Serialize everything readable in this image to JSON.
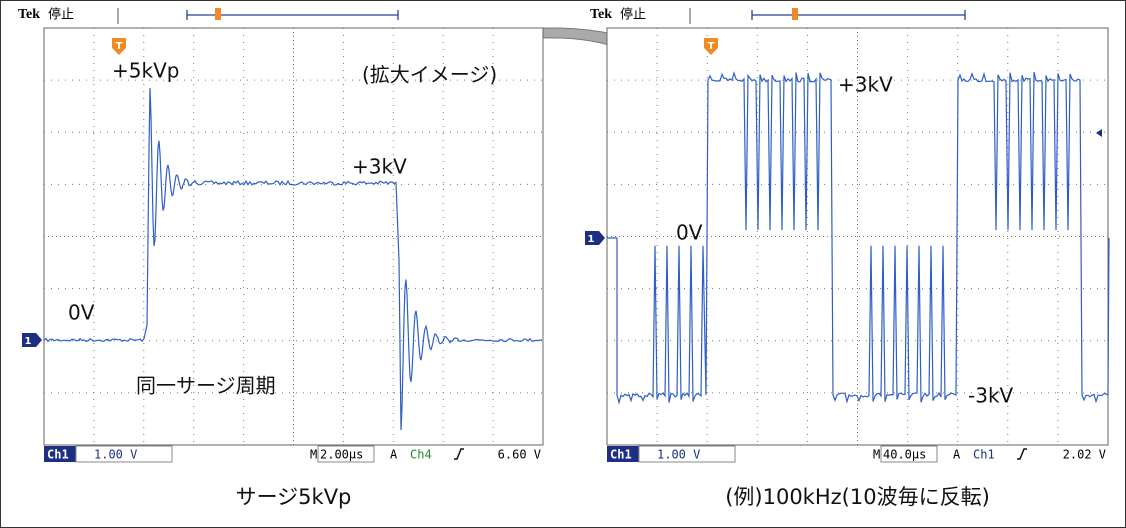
{
  "left_scope": {
    "brand": "Tek",
    "status": "停止",
    "trigger_marker": "T",
    "channel_marker": "1",
    "annotations": {
      "peak": "+5kVp",
      "plateau": "+3kV",
      "zero": "0V",
      "period": "同一サージ周期"
    },
    "zoom_note": "(拡大イメージ)",
    "bar": {
      "channel": "Ch1",
      "scale": "1.00 V",
      "m": "M",
      "timebase": "2.00µs",
      "a": "A",
      "trig_channel": "Ch4",
      "trig_level": "6.60 V"
    },
    "caption": "サージ5kVp"
  },
  "right_scope": {
    "brand": "Tek",
    "status": "停止",
    "trigger_marker": "T",
    "channel_marker": "1",
    "annotations": {
      "positive": "+3kV",
      "zero": "0V",
      "negative": "-3kV"
    },
    "bar": {
      "channel": "Ch1",
      "scale": "1.00 V",
      "m": "M",
      "timebase": "40.0µs",
      "a": "A",
      "trig_channel": "Ch1",
      "trig_level": "2.02 V"
    },
    "caption": "(例)100kHz(10波毎に反転)"
  }
}
